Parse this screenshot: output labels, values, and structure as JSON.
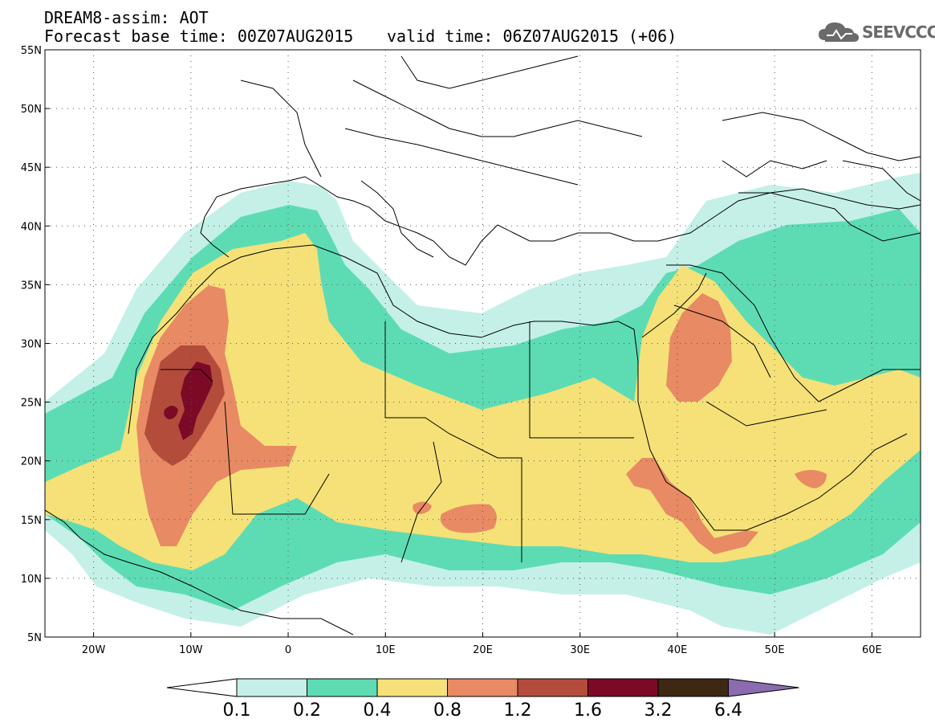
{
  "header": {
    "model_label": "DREAM8-assim: AOT",
    "base_time_label": "Forecast base time: 00Z07AUG2015",
    "valid_time_label": "valid time: 06Z07AUG2015 (+06)",
    "logo_text": "SEEVCCC"
  },
  "map": {
    "lon_range": [
      -25,
      65
    ],
    "lat_range": [
      5,
      55
    ],
    "lat_ticks": [
      "5N",
      "10N",
      "15N",
      "20N",
      "25N",
      "30N",
      "35N",
      "40N",
      "45N",
      "50N",
      "55N"
    ],
    "lon_ticks": [
      "20W",
      "10W",
      "0",
      "10E",
      "20E",
      "30E",
      "40E",
      "50E",
      "60E"
    ]
  },
  "colorbar": {
    "levels": [
      "0.1",
      "0.2",
      "0.4",
      "0.8",
      "1.2",
      "1.6",
      "3.2",
      "6.4"
    ],
    "colors": [
      "#c4f0e8",
      "#5ddcb4",
      "#f5e178",
      "#e88a64",
      "#b44c3c",
      "#7c0a26",
      "#3e2814",
      "#8c6cb0"
    ]
  },
  "colors": {
    "land_outline": "#000000",
    "ocean": "#ffffff"
  }
}
